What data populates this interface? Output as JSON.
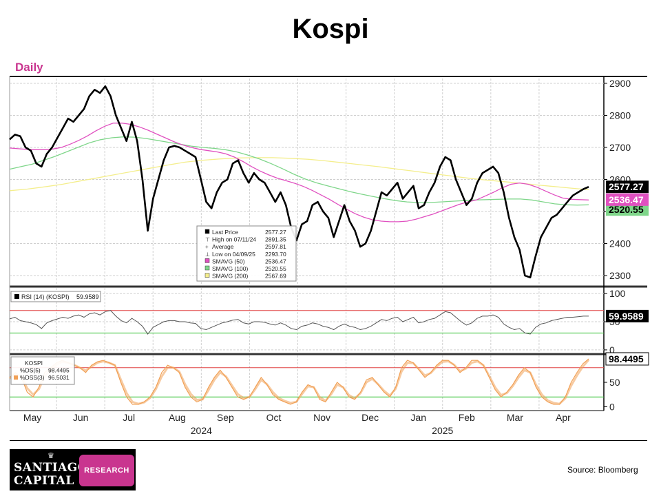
{
  "title": "Kospi",
  "period_label": "Daily",
  "source": "Source: Bloomberg",
  "logo": {
    "line1": "SANTIAGO",
    "line2": "CAPITAL",
    "badge": "RESEARCH"
  },
  "colors": {
    "price": "#000000",
    "sma50": "#e050c0",
    "sma100": "#7fd68a",
    "sma200": "#f4ee8c",
    "stoch": "#f1a055",
    "rsi": "#555555",
    "upper_band": "#e04040",
    "lower_band": "#30c030",
    "accent": "#c9358f"
  },
  "chart_data": [
    {
      "type": "line",
      "panel": "price",
      "x_axis": {
        "months": [
          "May",
          "Jun",
          "Jul",
          "Aug",
          "Sep",
          "Oct",
          "Nov",
          "Dec",
          "Jan",
          "Feb",
          "Mar",
          "Apr"
        ],
        "years": [
          "2024",
          "2025"
        ]
      },
      "yticks": [
        2300,
        2400,
        2500,
        2600,
        2700,
        2800,
        2900
      ],
      "ylim": [
        2270,
        2915
      ],
      "grid": true,
      "legend_position": "bottom-center",
      "legend": [
        {
          "name": "Last Price",
          "value": "2577.27"
        },
        {
          "name": "High on 07/11/24",
          "value": "2891.35"
        },
        {
          "name": "Average",
          "value": "2597.81"
        },
        {
          "name": "Low on 04/09/25",
          "value": "2293.70"
        },
        {
          "name": "SMAVG (50)",
          "value": "2536.47"
        },
        {
          "name": "SMAVG (100)",
          "value": "2520.55"
        },
        {
          "name": "SMAVG (200)",
          "value": "2567.69"
        }
      ],
      "last_labels": {
        "price": "2577.27",
        "sma50": "2536.47",
        "sma100": "2520.55"
      },
      "series": [
        {
          "name": "Last Price",
          "values": [
            2725,
            2740,
            2735,
            2700,
            2690,
            2650,
            2640,
            2680,
            2700,
            2730,
            2760,
            2790,
            2780,
            2800,
            2820,
            2860,
            2880,
            2870,
            2891,
            2860,
            2800,
            2760,
            2720,
            2780,
            2720,
            2600,
            2440,
            2540,
            2600,
            2660,
            2700,
            2705,
            2700,
            2690,
            2680,
            2670,
            2600,
            2530,
            2510,
            2560,
            2590,
            2600,
            2650,
            2660,
            2620,
            2590,
            2620,
            2600,
            2590,
            2560,
            2530,
            2560,
            2520,
            2450,
            2410,
            2460,
            2470,
            2520,
            2530,
            2500,
            2480,
            2420,
            2470,
            2520,
            2470,
            2440,
            2390,
            2400,
            2440,
            2500,
            2560,
            2550,
            2570,
            2590,
            2540,
            2560,
            2580,
            2510,
            2520,
            2560,
            2590,
            2640,
            2670,
            2660,
            2600,
            2560,
            2520,
            2540,
            2590,
            2620,
            2630,
            2640,
            2620,
            2560,
            2480,
            2420,
            2380,
            2300,
            2294,
            2360,
            2420,
            2450,
            2480,
            2490,
            2510,
            2530,
            2550,
            2560,
            2570,
            2577
          ]
        },
        {
          "name": "SMAVG (50)",
          "values": [
            2698,
            2696,
            2694,
            2693,
            2693,
            2695,
            2700,
            2710,
            2722,
            2736,
            2752,
            2766,
            2776,
            2776,
            2772,
            2764,
            2754,
            2742,
            2730,
            2718,
            2708,
            2700,
            2694,
            2690,
            2686,
            2680,
            2670,
            2656,
            2640,
            2626,
            2614,
            2604,
            2596,
            2588,
            2578,
            2566,
            2552,
            2538,
            2522,
            2507,
            2493,
            2482,
            2474,
            2470,
            2468,
            2468,
            2470,
            2476,
            2484,
            2492,
            2502,
            2512,
            2522,
            2530,
            2536,
            2548,
            2560,
            2574,
            2585,
            2589,
            2585,
            2576,
            2564,
            2552,
            2542,
            2538,
            2537,
            2536
          ]
        },
        {
          "name": "SMAVG (100)",
          "values": [
            2632,
            2640,
            2648,
            2660,
            2672,
            2686,
            2700,
            2714,
            2724,
            2730,
            2733,
            2732,
            2728,
            2722,
            2716,
            2710,
            2704,
            2700,
            2697,
            2693,
            2686,
            2676,
            2664,
            2650,
            2634,
            2617,
            2602,
            2590,
            2580,
            2571,
            2562,
            2554,
            2547,
            2540,
            2534,
            2530,
            2528,
            2528,
            2530,
            2532,
            2534,
            2536,
            2537,
            2538,
            2539,
            2539,
            2536,
            2530,
            2524,
            2521,
            2520,
            2521
          ]
        },
        {
          "name": "SMAVG (200)",
          "values": [
            2565,
            2570,
            2577,
            2585,
            2595,
            2605,
            2615,
            2625,
            2635,
            2645,
            2654,
            2660,
            2664,
            2667,
            2668,
            2668,
            2666,
            2663,
            2658,
            2652,
            2646,
            2640,
            2633,
            2626,
            2619,
            2612,
            2605,
            2599,
            2594,
            2589,
            2583,
            2578,
            2573,
            2568
          ]
        }
      ]
    },
    {
      "type": "line",
      "panel": "rsi",
      "legend": [
        {
          "name": "RSI (14) (KOSPI)",
          "value": "59.9589"
        }
      ],
      "last_label": "59.9589",
      "yticks": [
        0,
        50,
        100
      ],
      "ylim": [
        -5,
        110
      ],
      "bands": [
        70,
        30
      ],
      "values": [
        55,
        58,
        52,
        50,
        48,
        45,
        38,
        48,
        52,
        55,
        58,
        56,
        60,
        62,
        58,
        64,
        66,
        62,
        68,
        70,
        60,
        52,
        48,
        56,
        50,
        42,
        28,
        40,
        45,
        50,
        52,
        52,
        50,
        50,
        48,
        47,
        38,
        36,
        40,
        44,
        48,
        50,
        53,
        54,
        48,
        46,
        50,
        50,
        49,
        46,
        44,
        48,
        44,
        38,
        36,
        42,
        44,
        48,
        46,
        42,
        40,
        36,
        42,
        46,
        42,
        40,
        36,
        38,
        42,
        48,
        54,
        52,
        56,
        58,
        50,
        54,
        58,
        48,
        50,
        54,
        56,
        62,
        68,
        66,
        58,
        50,
        44,
        48,
        56,
        60,
        60,
        62,
        58,
        46,
        40,
        36,
        38,
        30,
        28,
        40,
        46,
        48,
        52,
        54,
        56,
        58,
        58,
        59,
        60,
        60
      ]
    },
    {
      "type": "line",
      "panel": "stochastic",
      "legend": [
        {
          "name": "KOSPI",
          "value": ""
        },
        {
          "name": "%DS(5)",
          "value": "98.4495"
        },
        {
          "name": "%DSS(3)",
          "value": "96.5031"
        }
      ],
      "last_label": "98.4495",
      "yticks": [
        0,
        50
      ],
      "ylim": [
        -5,
        105
      ],
      "bands": [
        80,
        20
      ],
      "series": [
        {
          "name": "%DS(5)",
          "values": [
            60,
            70,
            60,
            30,
            20,
            40,
            70,
            80,
            90,
            95,
            90,
            85,
            80,
            70,
            85,
            92,
            95,
            90,
            85,
            50,
            20,
            5,
            5,
            10,
            20,
            40,
            70,
            85,
            80,
            70,
            40,
            20,
            10,
            15,
            40,
            60,
            75,
            60,
            40,
            20,
            15,
            20,
            40,
            60,
            45,
            25,
            15,
            10,
            5,
            10,
            30,
            45,
            40,
            15,
            10,
            30,
            50,
            40,
            20,
            15,
            30,
            55,
            60,
            45,
            30,
            20,
            40,
            80,
            95,
            90,
            75,
            60,
            70,
            85,
            95,
            95,
            85,
            70,
            80,
            95,
            95,
            85,
            60,
            35,
            20,
            30,
            45,
            65,
            80,
            70,
            40,
            20,
            10,
            5,
            5,
            20,
            50,
            70,
            88,
            98
          ]
        },
        {
          "name": "%DSS(3)",
          "values": [
            58,
            66,
            62,
            38,
            25,
            36,
            62,
            76,
            86,
            92,
            90,
            86,
            80,
            74,
            82,
            90,
            93,
            90,
            85,
            56,
            28,
            10,
            6,
            9,
            18,
            36,
            62,
            80,
            80,
            72,
            46,
            26,
            14,
            15,
            34,
            55,
            70,
            62,
            44,
            26,
            18,
            20,
            36,
            55,
            46,
            30,
            18,
            12,
            8,
            10,
            26,
            42,
            40,
            20,
            12,
            26,
            45,
            40,
            24,
            17,
            28,
            50,
            57,
            46,
            33,
            23,
            37,
            72,
            90,
            89,
            77,
            64,
            69,
            82,
            92,
            93,
            86,
            73,
            78,
            90,
            93,
            85,
            63,
            40,
            24,
            28,
            42,
            60,
            75,
            70,
            45,
            25,
            13,
            8,
            6,
            17,
            43,
            64,
            82,
            96
          ]
        }
      ]
    }
  ]
}
